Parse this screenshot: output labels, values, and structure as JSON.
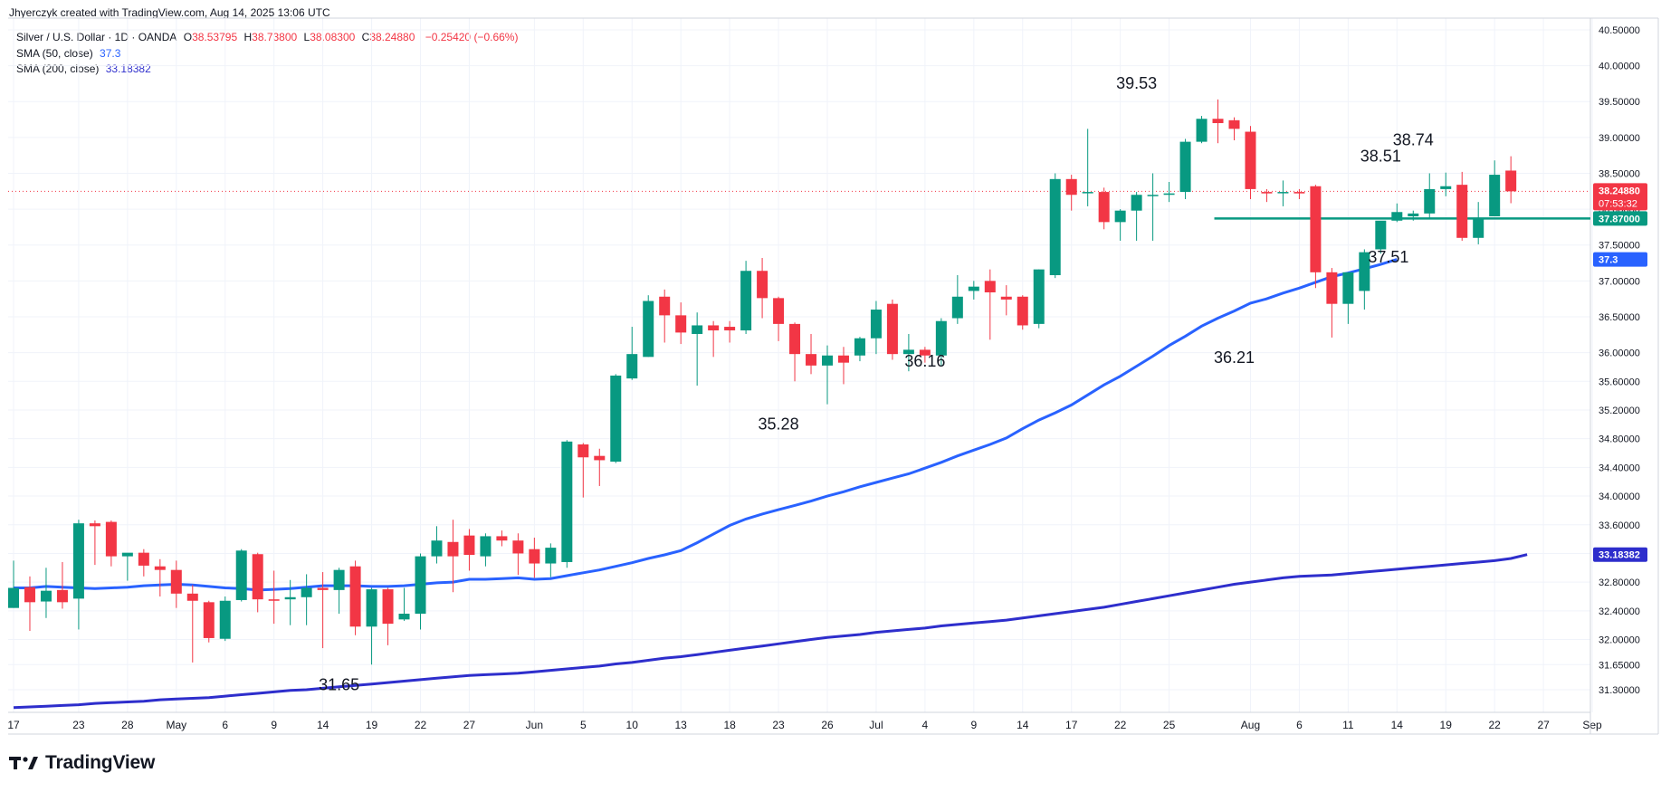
{
  "attribution": "Jhyerczyk created with TradingView.com, Aug 14, 2025 13:06 UTC",
  "legend": {
    "symbol": "Silver / U.S. Dollar · 1D · OANDA",
    "ohlc": [
      {
        "k": "O",
        "v": "38.53795"
      },
      {
        "k": "H",
        "v": "38.73800"
      },
      {
        "k": "L",
        "v": "38.08300"
      },
      {
        "k": "C",
        "v": "38.24880"
      }
    ],
    "change": "−0.25420 (−0.66%)",
    "sma50_label": "SMA (50, close)",
    "sma50_value": "37.3",
    "sma200_label": "SMA (200, close)",
    "sma200_value": "33.18382"
  },
  "brand": {
    "name": "TradingView",
    "icon": "tradingview-logo-icon"
  },
  "chart_data": {
    "type": "candlestick",
    "title": "Silver / U.S. Dollar · 1D · OANDA",
    "ylim": [
      31.05,
      40.62
    ],
    "grid": true,
    "colors": {
      "up": "#089981",
      "down": "#f23645",
      "sma50": "#2962ff",
      "sma200": "#2e2ecc",
      "support": "#089981",
      "price_line": "#f23645"
    },
    "y_ticks": [
      "31.30000",
      "31.65000",
      "32.00000",
      "32.40000",
      "32.80000",
      "33.20000",
      "33.60000",
      "34.00000",
      "34.40000",
      "34.80000",
      "35.20000",
      "35.60000",
      "36.00000",
      "36.50000",
      "37.00000",
      "37.50000",
      "38.00000",
      "38.50000",
      "39.00000",
      "39.50000",
      "40.00000",
      "40.50000"
    ],
    "x_ticks": [
      {
        "label": "17",
        "i": 0
      },
      {
        "label": "23",
        "i": 4
      },
      {
        "label": "28",
        "i": 7
      },
      {
        "label": "May",
        "i": 10
      },
      {
        "label": "6",
        "i": 13
      },
      {
        "label": "9",
        "i": 16
      },
      {
        "label": "14",
        "i": 19
      },
      {
        "label": "19",
        "i": 22
      },
      {
        "label": "22",
        "i": 25
      },
      {
        "label": "27",
        "i": 28
      },
      {
        "label": "Jun",
        "i": 32
      },
      {
        "label": "5",
        "i": 35
      },
      {
        "label": "10",
        "i": 38
      },
      {
        "label": "13",
        "i": 41
      },
      {
        "label": "18",
        "i": 44
      },
      {
        "label": "23",
        "i": 47
      },
      {
        "label": "26",
        "i": 50
      },
      {
        "label": "Jul",
        "i": 53
      },
      {
        "label": "4",
        "i": 56
      },
      {
        "label": "9",
        "i": 59
      },
      {
        "label": "14",
        "i": 62
      },
      {
        "label": "17",
        "i": 65
      },
      {
        "label": "22",
        "i": 68
      },
      {
        "label": "25",
        "i": 71
      },
      {
        "label": "Aug",
        "i": 76
      },
      {
        "label": "6",
        "i": 79
      },
      {
        "label": "11",
        "i": 82
      },
      {
        "label": "14",
        "i": 85
      },
      {
        "label": "19",
        "i": 88
      },
      {
        "label": "22",
        "i": 91
      },
      {
        "label": "27",
        "i": 94
      },
      {
        "label": "Sep",
        "i": 97
      }
    ],
    "candles": [
      {
        "o": 32.44,
        "h": 33.1,
        "l": 32.44,
        "c": 32.72
      },
      {
        "o": 32.73,
        "h": 32.88,
        "l": 32.12,
        "c": 32.52
      },
      {
        "o": 32.53,
        "h": 33.0,
        "l": 32.3,
        "c": 32.68
      },
      {
        "o": 32.69,
        "h": 33.08,
        "l": 32.43,
        "c": 32.52
      },
      {
        "o": 32.57,
        "h": 33.67,
        "l": 32.14,
        "c": 33.62
      },
      {
        "o": 33.62,
        "h": 33.66,
        "l": 33.04,
        "c": 33.58
      },
      {
        "o": 33.64,
        "h": 33.66,
        "l": 33.02,
        "c": 33.16
      },
      {
        "o": 33.16,
        "h": 33.18,
        "l": 32.82,
        "c": 33.21
      },
      {
        "o": 33.21,
        "h": 33.26,
        "l": 32.88,
        "c": 33.03
      },
      {
        "o": 33.02,
        "h": 33.12,
        "l": 32.6,
        "c": 32.97
      },
      {
        "o": 32.97,
        "h": 33.1,
        "l": 32.44,
        "c": 32.64
      },
      {
        "o": 32.64,
        "h": 32.76,
        "l": 31.68,
        "c": 32.54
      },
      {
        "o": 32.52,
        "h": 32.54,
        "l": 31.96,
        "c": 32.02
      },
      {
        "o": 32.01,
        "h": 32.6,
        "l": 31.98,
        "c": 32.54
      },
      {
        "o": 32.55,
        "h": 33.26,
        "l": 32.53,
        "c": 33.24
      },
      {
        "o": 33.19,
        "h": 33.21,
        "l": 32.38,
        "c": 32.56
      },
      {
        "o": 32.56,
        "h": 32.96,
        "l": 32.22,
        "c": 32.54
      },
      {
        "o": 32.56,
        "h": 32.83,
        "l": 32.2,
        "c": 32.59
      },
      {
        "o": 32.59,
        "h": 32.91,
        "l": 32.2,
        "c": 32.72
      },
      {
        "o": 32.72,
        "h": 32.94,
        "l": 31.88,
        "c": 32.69
      },
      {
        "o": 32.69,
        "h": 33.0,
        "l": 32.36,
        "c": 32.97
      },
      {
        "o": 33.02,
        "h": 33.1,
        "l": 32.06,
        "c": 32.18
      },
      {
        "o": 32.18,
        "h": 32.72,
        "l": 31.65,
        "c": 32.7
      },
      {
        "o": 32.7,
        "h": 32.72,
        "l": 31.92,
        "c": 32.22
      },
      {
        "o": 32.28,
        "h": 32.72,
        "l": 32.26,
        "c": 32.36
      },
      {
        "o": 32.36,
        "h": 33.2,
        "l": 32.14,
        "c": 33.16
      },
      {
        "o": 33.16,
        "h": 33.58,
        "l": 33.06,
        "c": 33.38
      },
      {
        "o": 33.36,
        "h": 33.67,
        "l": 32.66,
        "c": 33.16
      },
      {
        "o": 33.45,
        "h": 33.54,
        "l": 32.96,
        "c": 33.18
      },
      {
        "o": 33.16,
        "h": 33.48,
        "l": 33.02,
        "c": 33.44
      },
      {
        "o": 33.44,
        "h": 33.52,
        "l": 33.3,
        "c": 33.38
      },
      {
        "o": 33.38,
        "h": 33.48,
        "l": 32.9,
        "c": 33.2
      },
      {
        "o": 33.26,
        "h": 33.42,
        "l": 32.86,
        "c": 33.06
      },
      {
        "o": 33.06,
        "h": 33.34,
        "l": 32.87,
        "c": 33.28
      },
      {
        "o": 33.08,
        "h": 34.78,
        "l": 33.0,
        "c": 34.76
      },
      {
        "o": 34.72,
        "h": 34.74,
        "l": 33.98,
        "c": 34.54
      },
      {
        "o": 34.56,
        "h": 34.66,
        "l": 34.14,
        "c": 34.5
      },
      {
        "o": 34.48,
        "h": 35.7,
        "l": 34.46,
        "c": 35.68
      },
      {
        "o": 35.64,
        "h": 36.36,
        "l": 35.62,
        "c": 35.98
      },
      {
        "o": 35.94,
        "h": 36.8,
        "l": 35.94,
        "c": 36.72
      },
      {
        "o": 36.78,
        "h": 36.88,
        "l": 36.14,
        "c": 36.52
      },
      {
        "o": 36.52,
        "h": 36.7,
        "l": 36.12,
        "c": 36.28
      },
      {
        "o": 36.26,
        "h": 36.56,
        "l": 35.54,
        "c": 36.38
      },
      {
        "o": 36.38,
        "h": 36.44,
        "l": 35.94,
        "c": 36.31
      },
      {
        "o": 36.36,
        "h": 36.44,
        "l": 36.14,
        "c": 36.31
      },
      {
        "o": 36.31,
        "h": 37.28,
        "l": 36.26,
        "c": 37.14
      },
      {
        "o": 37.14,
        "h": 37.32,
        "l": 36.48,
        "c": 36.76
      },
      {
        "o": 36.76,
        "h": 36.78,
        "l": 36.16,
        "c": 36.4
      },
      {
        "o": 36.4,
        "h": 36.42,
        "l": 35.6,
        "c": 35.98
      },
      {
        "o": 35.98,
        "h": 36.26,
        "l": 35.7,
        "c": 35.82
      },
      {
        "o": 35.82,
        "h": 36.1,
        "l": 35.28,
        "c": 35.96
      },
      {
        "o": 35.96,
        "h": 36.08,
        "l": 35.56,
        "c": 35.86
      },
      {
        "o": 35.96,
        "h": 36.22,
        "l": 35.88,
        "c": 36.2
      },
      {
        "o": 36.2,
        "h": 36.72,
        "l": 35.98,
        "c": 36.6
      },
      {
        "o": 36.68,
        "h": 36.74,
        "l": 35.9,
        "c": 35.98
      },
      {
        "o": 35.98,
        "h": 36.26,
        "l": 35.74,
        "c": 36.04
      },
      {
        "o": 36.04,
        "h": 36.08,
        "l": 35.86,
        "c": 35.96
      },
      {
        "o": 35.96,
        "h": 36.48,
        "l": 35.82,
        "c": 36.44
      },
      {
        "o": 36.48,
        "h": 37.08,
        "l": 36.4,
        "c": 36.78
      },
      {
        "o": 36.86,
        "h": 37.0,
        "l": 36.74,
        "c": 36.92
      },
      {
        "o": 37.0,
        "h": 37.16,
        "l": 36.18,
        "c": 36.84
      },
      {
        "o": 36.78,
        "h": 36.94,
        "l": 36.52,
        "c": 36.74
      },
      {
        "o": 36.78,
        "h": 36.8,
        "l": 36.32,
        "c": 36.38
      },
      {
        "o": 36.4,
        "h": 37.16,
        "l": 36.34,
        "c": 37.16
      },
      {
        "o": 37.08,
        "h": 38.5,
        "l": 37.04,
        "c": 38.42
      },
      {
        "o": 38.42,
        "h": 38.48,
        "l": 37.98,
        "c": 38.2
      },
      {
        "o": 38.24,
        "h": 39.12,
        "l": 38.04,
        "c": 38.24
      },
      {
        "o": 38.24,
        "h": 38.3,
        "l": 37.72,
        "c": 37.82
      },
      {
        "o": 37.82,
        "h": 38.0,
        "l": 37.56,
        "c": 37.98
      },
      {
        "o": 37.98,
        "h": 38.24,
        "l": 37.56,
        "c": 38.2
      },
      {
        "o": 38.2,
        "h": 38.5,
        "l": 37.56,
        "c": 38.2
      },
      {
        "o": 38.2,
        "h": 38.38,
        "l": 38.1,
        "c": 38.22
      },
      {
        "o": 38.24,
        "h": 38.98,
        "l": 38.14,
        "c": 38.94
      },
      {
        "o": 38.94,
        "h": 39.3,
        "l": 38.92,
        "c": 39.26
      },
      {
        "o": 39.26,
        "h": 39.53,
        "l": 38.92,
        "c": 39.2
      },
      {
        "o": 39.24,
        "h": 39.28,
        "l": 38.96,
        "c": 39.12
      },
      {
        "o": 39.08,
        "h": 39.16,
        "l": 38.14,
        "c": 38.28
      },
      {
        "o": 38.24,
        "h": 38.28,
        "l": 38.1,
        "c": 38.22
      },
      {
        "o": 38.24,
        "h": 38.4,
        "l": 38.04,
        "c": 38.24
      },
      {
        "o": 38.24,
        "h": 38.28,
        "l": 38.14,
        "c": 38.22
      },
      {
        "o": 38.32,
        "h": 38.34,
        "l": 36.9,
        "c": 37.12
      },
      {
        "o": 37.12,
        "h": 37.18,
        "l": 36.21,
        "c": 36.68
      },
      {
        "o": 36.68,
        "h": 37.1,
        "l": 36.4,
        "c": 37.12
      },
      {
        "o": 36.86,
        "h": 37.44,
        "l": 36.6,
        "c": 37.4
      },
      {
        "o": 37.44,
        "h": 37.82,
        "l": 37.38,
        "c": 37.84
      },
      {
        "o": 37.84,
        "h": 38.08,
        "l": 37.82,
        "c": 37.96
      },
      {
        "o": 37.9,
        "h": 37.98,
        "l": 37.84,
        "c": 37.94
      },
      {
        "o": 37.94,
        "h": 38.5,
        "l": 37.86,
        "c": 38.28
      },
      {
        "o": 38.28,
        "h": 38.51,
        "l": 38.18,
        "c": 38.32
      },
      {
        "o": 38.34,
        "h": 38.52,
        "l": 37.56,
        "c": 37.6
      },
      {
        "o": 37.6,
        "h": 38.1,
        "l": 37.51,
        "c": 37.88
      },
      {
        "o": 37.9,
        "h": 38.68,
        "l": 37.9,
        "c": 38.48
      },
      {
        "o": 38.53795,
        "h": 38.738,
        "l": 38.083,
        "c": 38.2488
      }
    ],
    "sma50": [
      32.72,
      32.72,
      32.74,
      32.73,
      32.72,
      32.71,
      32.72,
      32.73,
      32.75,
      32.76,
      32.77,
      32.76,
      32.74,
      32.72,
      32.71,
      32.69,
      32.7,
      32.71,
      32.73,
      32.75,
      32.75,
      32.75,
      32.74,
      32.74,
      32.75,
      32.77,
      32.79,
      32.8,
      32.84,
      32.84,
      32.85,
      32.86,
      32.84,
      32.85,
      32.89,
      32.93,
      32.97,
      33.02,
      33.07,
      33.13,
      33.18,
      33.24,
      33.35,
      33.47,
      33.59,
      33.68,
      33.75,
      33.81,
      33.87,
      33.93,
      34.0,
      34.06,
      34.13,
      34.19,
      34.25,
      34.31,
      34.39,
      34.47,
      34.56,
      34.64,
      34.72,
      34.81,
      34.94,
      35.06,
      35.16,
      35.27,
      35.41,
      35.55,
      35.67,
      35.81,
      35.95,
      36.1,
      36.23,
      36.37,
      36.48,
      36.58,
      36.69,
      36.75,
      36.83,
      36.9,
      36.98,
      37.06,
      37.11,
      37.17,
      37.23,
      37.3
    ],
    "sma200": [
      31.05,
      31.06,
      31.07,
      31.08,
      31.09,
      31.11,
      31.12,
      31.13,
      31.14,
      31.16,
      31.17,
      31.18,
      31.19,
      31.21,
      31.23,
      31.25,
      31.27,
      31.29,
      31.3,
      31.32,
      31.34,
      31.36,
      31.38,
      31.4,
      31.42,
      31.44,
      31.46,
      31.48,
      31.5,
      31.51,
      31.52,
      31.53,
      31.55,
      31.57,
      31.59,
      31.61,
      31.63,
      31.66,
      31.68,
      31.71,
      31.74,
      31.76,
      31.79,
      31.82,
      31.85,
      31.88,
      31.91,
      31.94,
      31.97,
      32.0,
      32.03,
      32.05,
      32.07,
      32.1,
      32.12,
      32.14,
      32.16,
      32.19,
      32.21,
      32.23,
      32.25,
      32.27,
      32.3,
      32.33,
      32.36,
      32.39,
      32.42,
      32.45,
      32.49,
      32.53,
      32.57,
      32.61,
      32.65,
      32.69,
      32.73,
      32.77,
      32.8,
      32.83,
      32.86,
      32.88,
      32.89,
      32.9,
      32.92,
      32.94,
      32.96,
      32.98,
      33.0,
      33.02,
      33.04,
      33.06,
      33.08,
      33.1,
      33.13,
      33.18382
    ],
    "annotations": [
      {
        "text": "39.53",
        "i": 69,
        "value": 39.53,
        "pos": "above"
      },
      {
        "text": "38.51",
        "i": 84,
        "value": 38.51,
        "pos": "above"
      },
      {
        "text": "38.74",
        "i": 86,
        "value": 38.738,
        "pos": "above"
      },
      {
        "text": "37.51",
        "i": 82,
        "value": 37.51,
        "pos": "right"
      },
      {
        "text": "36.16",
        "i": 56,
        "value": 36.16,
        "pos": "below"
      },
      {
        "text": "36.21",
        "i": 75,
        "value": 36.21,
        "pos": "below"
      },
      {
        "text": "35.28",
        "i": 47,
        "value": 35.28,
        "pos": "below"
      },
      {
        "text": "31.65",
        "i": 20,
        "value": 31.65,
        "pos": "below"
      }
    ],
    "support_line": {
      "value": 37.87,
      "from_i": 74
    },
    "price_labels": [
      {
        "text": "38.24880",
        "sub": "07:53:32",
        "value": 38.2488,
        "color": "#f23645"
      },
      {
        "text": "37.87000",
        "value": 37.87,
        "color": "#089981"
      },
      {
        "text": "37.3",
        "value": 37.3,
        "color": "#2962ff"
      },
      {
        "text": "33.18382",
        "value": 33.18382,
        "color": "#2e2ecc"
      }
    ]
  }
}
